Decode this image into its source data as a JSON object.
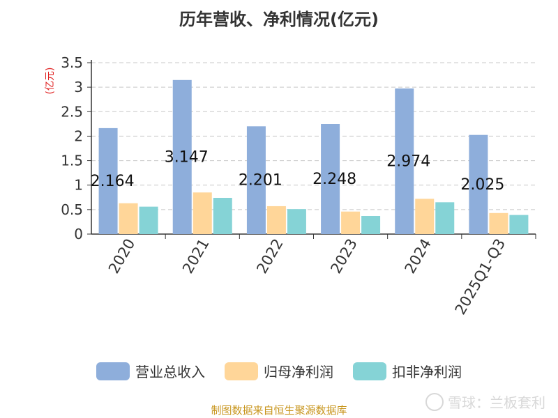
{
  "title": "历年营收、净利情况(亿元)",
  "colors": {
    "revenue": "#8eaedb",
    "net_profit": "#ffd699",
    "deducted_profit": "#85d3d6",
    "ylabel": "#e02020"
  },
  "chart_data": {
    "type": "bar",
    "title": "历年营收、净利情况(亿元)",
    "ylabel": "(亿元)",
    "xlabel": "",
    "ylim": [
      0,
      3.5
    ],
    "yticks": [
      "0",
      "0.5",
      "1",
      "1.5",
      "2",
      "2.5",
      "3",
      "3.5"
    ],
    "grid": true,
    "legend_position": "bottom",
    "categories": [
      "2020",
      "2021",
      "2022",
      "2023",
      "2024",
      "2025Q1-Q3"
    ],
    "series": [
      {
        "name": "营业总收入",
        "values": [
          2.164,
          3.147,
          2.201,
          2.248,
          2.974,
          2.025
        ],
        "labels": [
          "2.164",
          "3.147",
          "2.201",
          "2.248",
          "2.974",
          "2.025"
        ]
      },
      {
        "name": "归母净利润",
        "values": [
          0.63,
          0.85,
          0.57,
          0.46,
          0.72,
          0.43
        ]
      },
      {
        "name": "扣非净利润",
        "values": [
          0.56,
          0.74,
          0.51,
          0.37,
          0.65,
          0.39
        ]
      }
    ]
  },
  "legend": [
    {
      "label": "营业总收入",
      "color": "#8eaedb"
    },
    {
      "label": "归母净利润",
      "color": "#ffd699"
    },
    {
      "label": "扣非净利润",
      "color": "#85d3d6"
    }
  ],
  "source": "制图数据来自恒生聚源数据库",
  "watermark": "雪球：兰板套利"
}
